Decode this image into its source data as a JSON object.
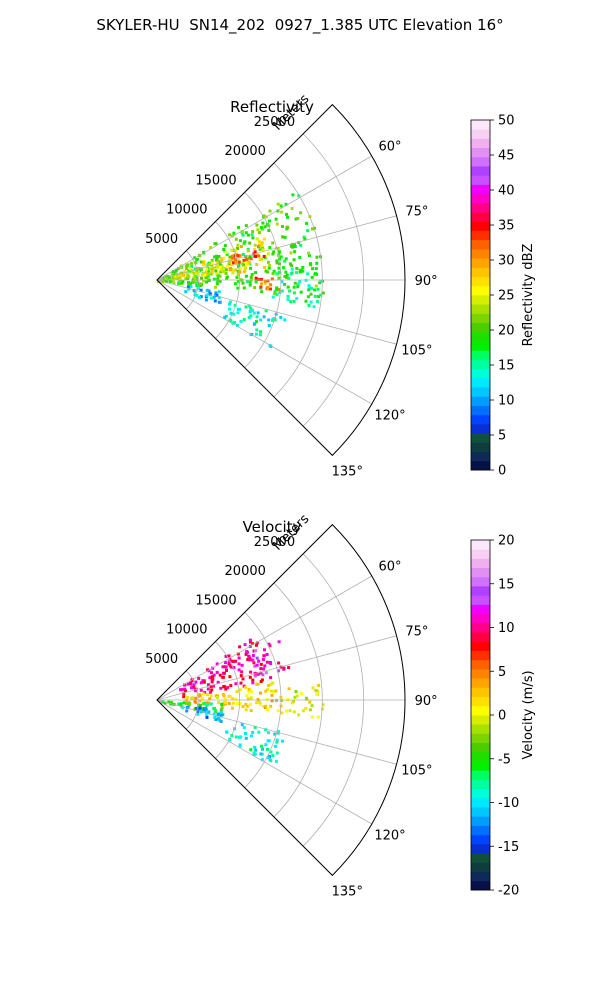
{
  "suptitle": "SKYLER-HU  SN14_202  0927_1.385 UTC Elevation 16°",
  "chart_data": [
    {
      "type": "heatmap",
      "projection": "polar-sector",
      "title": "Reflectivity",
      "r_axis_label": "Meters",
      "r_ticks": [
        5000,
        10000,
        15000,
        20000,
        25000
      ],
      "r_tick_labels": [
        "5000",
        "10000",
        "15000",
        "20000",
        "25000"
      ],
      "r_max": 30000,
      "theta_range_deg": [
        45,
        135
      ],
      "theta_ticks": [
        60,
        75,
        90,
        105,
        120,
        135
      ],
      "theta_tick_labels": [
        "60°",
        "75°",
        "90°",
        "105°",
        "120°",
        "135°"
      ],
      "grid": true,
      "colorbar": {
        "label": "Reflectivity dBZ",
        "min": 0,
        "max": 50,
        "ticks": [
          0,
          5,
          10,
          15,
          20,
          25,
          30,
          35,
          40,
          45,
          50
        ],
        "tick_labels": [
          "0",
          "5",
          "10",
          "15",
          "20",
          "25",
          "30",
          "35",
          "40",
          "45",
          "50"
        ],
        "colors": [
          "#08104a",
          "#0d2a58",
          "#0f3d3d",
          "#12503e",
          "#0a2fd0",
          "#0044ff",
          "#0070ff",
          "#009cff",
          "#00c8ff",
          "#00e8ff",
          "#00ffd8",
          "#00ffa0",
          "#00ff60",
          "#00f000",
          "#1de000",
          "#4ccd00",
          "#7ad400",
          "#a8e000",
          "#d6ee00",
          "#ffff00",
          "#ffe000",
          "#ffc400",
          "#ffa400",
          "#ff8400",
          "#ff6000",
          "#ff3000",
          "#ff0000",
          "#ff0044",
          "#ff0088",
          "#ff00c8",
          "#f000ff",
          "#c850ff",
          "#b040ff",
          "#d070ff",
          "#e090f0",
          "#f0b0f0",
          "#f8d0f4",
          "#fce8fa"
        ]
      },
      "echo_regions": [
        {
          "az": [
            56,
            96
          ],
          "r": [
            0,
            20000
          ],
          "level": 20
        },
        {
          "az": [
            66,
            84
          ],
          "r": [
            2000,
            14000
          ],
          "level": 26
        },
        {
          "az": [
            70,
            78
          ],
          "r": [
            9000,
            14000
          ],
          "level": 33
        },
        {
          "az": [
            88,
            96
          ],
          "r": [
            11000,
            15000
          ],
          "level": 32
        },
        {
          "az": [
            84,
            100
          ],
          "r": [
            14000,
            20000
          ],
          "level": 16
        },
        {
          "az": [
            104,
            120
          ],
          "r": [
            9000,
            16000
          ],
          "level": 14
        },
        {
          "az": [
            98,
            112
          ],
          "r": [
            3000,
            8000
          ],
          "level": 11
        }
      ]
    },
    {
      "type": "heatmap",
      "projection": "polar-sector",
      "title": "Velocity",
      "r_axis_label": "Meters",
      "r_ticks": [
        5000,
        10000,
        15000,
        20000,
        25000
      ],
      "r_tick_labels": [
        "5000",
        "10000",
        "15000",
        "20000",
        "25000"
      ],
      "r_max": 30000,
      "theta_range_deg": [
        45,
        135
      ],
      "theta_ticks": [
        60,
        75,
        90,
        105,
        120,
        135
      ],
      "theta_tick_labels": [
        "60°",
        "75°",
        "90°",
        "105°",
        "120°",
        "135°"
      ],
      "grid": true,
      "colorbar": {
        "label": "Velocity (m/s)",
        "min": -20,
        "max": 20,
        "ticks": [
          -20,
          -15,
          -10,
          -5,
          0,
          5,
          10,
          15,
          20
        ],
        "tick_labels": [
          "-20",
          "-15",
          "-10",
          "-5",
          "0",
          "5",
          "10",
          "15",
          "20"
        ],
        "colors": [
          "#08104a",
          "#0d2a58",
          "#0f3d3d",
          "#12503e",
          "#0a2fd0",
          "#0044ff",
          "#0070ff",
          "#009cff",
          "#00c8ff",
          "#00e8ff",
          "#00ffd8",
          "#00ffa0",
          "#00ff60",
          "#00f000",
          "#1de000",
          "#4ccd00",
          "#7ad400",
          "#a8e000",
          "#d6ee00",
          "#ffff00",
          "#ffe000",
          "#ffc400",
          "#ffa400",
          "#ff8400",
          "#ff6000",
          "#ff3000",
          "#ff0000",
          "#ff0044",
          "#ff0088",
          "#ff00c8",
          "#f000ff",
          "#c850ff",
          "#b040ff",
          "#d070ff",
          "#e090f0",
          "#f0b0f0",
          "#f8d0f4",
          "#fce8fa"
        ]
      },
      "echo_regions": [
        {
          "az": [
            56,
            80
          ],
          "r": [
            3000,
            14000
          ],
          "level": 10
        },
        {
          "az": [
            62,
            76
          ],
          "r": [
            12000,
            17000
          ],
          "level": 12
        },
        {
          "az": [
            80,
            96
          ],
          "r": [
            3000,
            15000
          ],
          "level": 2
        },
        {
          "az": [
            84,
            96
          ],
          "r": [
            14000,
            20000
          ],
          "level": 0
        },
        {
          "az": [
            92,
            104
          ],
          "r": [
            0,
            8000
          ],
          "level": -5
        },
        {
          "az": [
            98,
            110
          ],
          "r": [
            3000,
            8000
          ],
          "level": -12
        },
        {
          "az": [
            104,
            120
          ],
          "r": [
            9000,
            16000
          ],
          "level": -9
        }
      ]
    }
  ]
}
